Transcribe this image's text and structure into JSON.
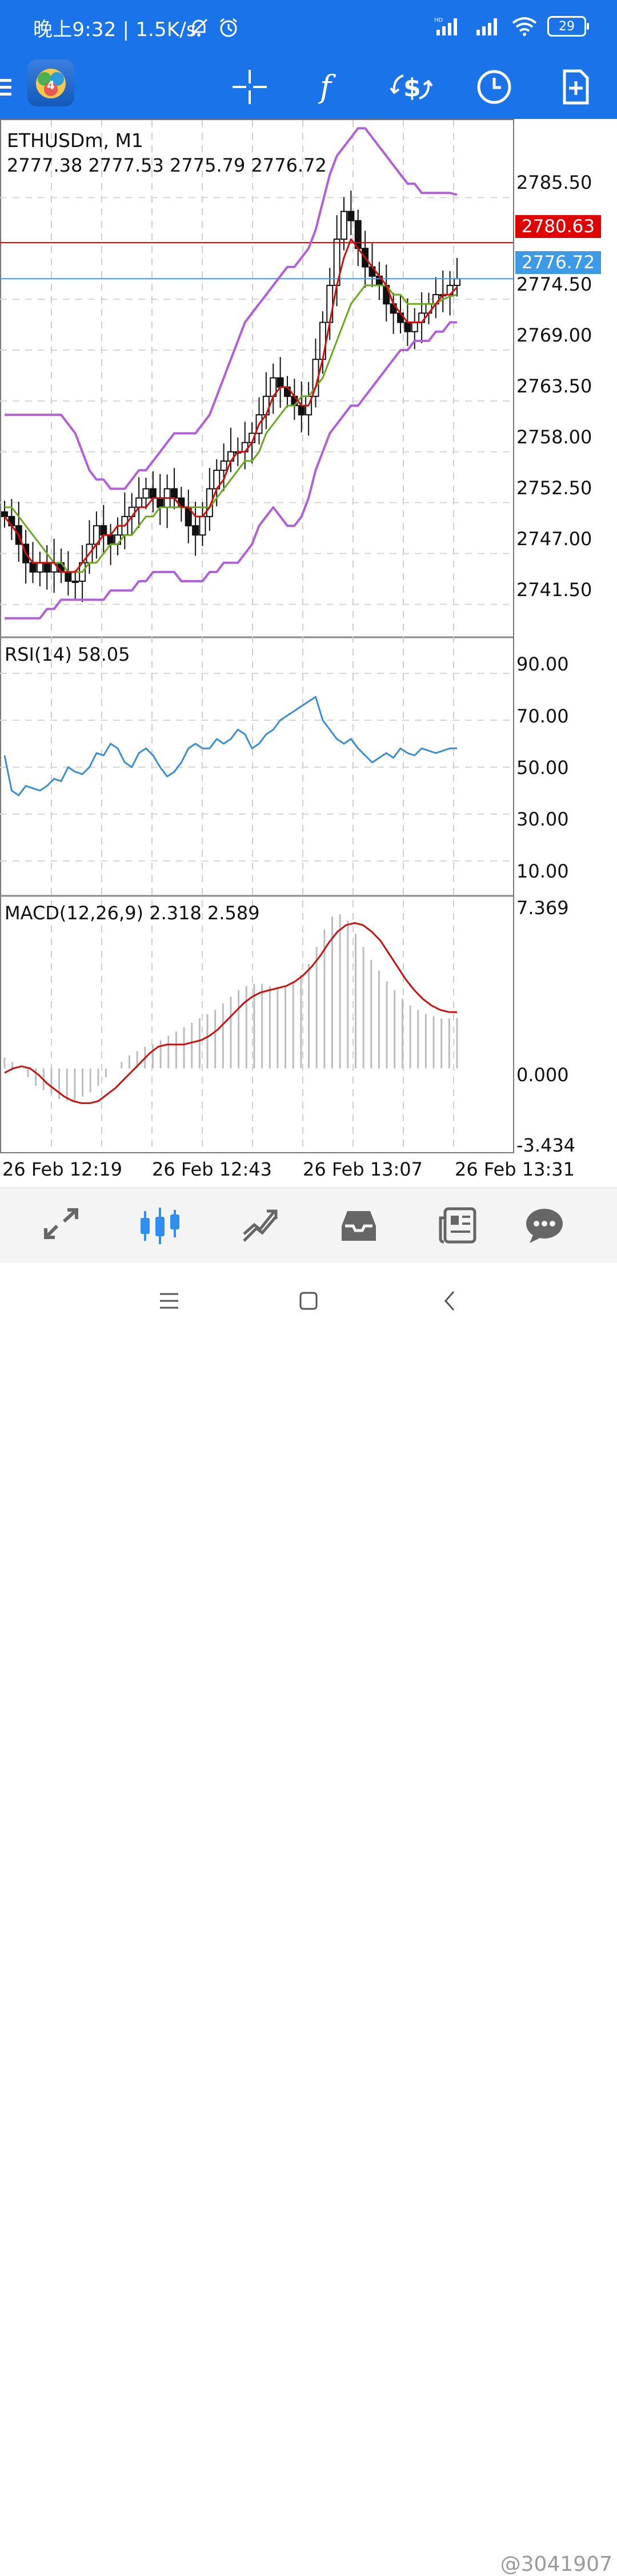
{
  "status_bar": {
    "left_text": "晚上9:32 | 1.5K/s",
    "battery": "29",
    "net_label": "HD"
  },
  "toolbar": {
    "icons": [
      "menu-icon",
      "app-logo-icon",
      "crosshair-icon",
      "indicators-icon",
      "trade-icon",
      "timeframe-icon",
      "new-order-icon"
    ]
  },
  "chart": {
    "symbol_timeframe": "ETHUSDm, M1",
    "ohlc": "2777.38 2777.53 2775.79 2776.72",
    "price_ticks": [
      "2785.50",
      "2774.50",
      "2769.00",
      "2763.50",
      "2758.00",
      "2752.50",
      "2747.00",
      "2741.50"
    ],
    "ask_line": "2780.63",
    "bid_line": "2776.72",
    "rsi_title": "RSI(14) 58.05",
    "rsi_ticks": [
      "90.00",
      "70.00",
      "50.00",
      "30.00",
      "10.00"
    ],
    "macd_title": "MACD(12,26,9) 2.318 2.589",
    "macd_ticks": [
      "7.369",
      "0.000",
      "-3.434"
    ],
    "time_labels": [
      "26 Feb 12:19",
      "26 Feb 12:43",
      "26 Feb 13:07",
      "26 Feb 13:31"
    ],
    "colors": {
      "bollinger": "#b060d8",
      "ma_fast": "#cc1010",
      "ma_slow": "#6aa820",
      "rsi": "#3b8fd0",
      "ask": "#e00000",
      "bid": "#3c9ae6"
    }
  },
  "chart_data": {
    "type": "candlestick",
    "symbol": "ETHUSDm",
    "timeframe": "M1",
    "price_range": [
      2738,
      2794
    ],
    "close": [
      2751,
      2750,
      2748,
      2746,
      2745,
      2746,
      2745,
      2746,
      2745,
      2744,
      2744,
      2746,
      2748,
      2750,
      2749,
      2748,
      2749,
      2751,
      2752,
      2753,
      2754,
      2753,
      2752,
      2754,
      2753,
      2752,
      2750,
      2749,
      2751,
      2754,
      2756,
      2757,
      2758,
      2758,
      2759,
      2760,
      2762,
      2764,
      2766,
      2765,
      2764,
      2763,
      2762,
      2764,
      2768,
      2772,
      2776,
      2781,
      2784,
      2783,
      2780,
      2778,
      2777,
      2776,
      2774,
      2773,
      2772,
      2771,
      2772,
      2773,
      2774,
      2775,
      2775,
      2776,
      2776.72
    ],
    "ma_fast": [
      2751,
      2750,
      2749,
      2747,
      2746,
      2746,
      2746,
      2746,
      2745,
      2745,
      2745,
      2746,
      2747,
      2748,
      2749,
      2749,
      2750,
      2750,
      2751,
      2752,
      2752,
      2753,
      2753,
      2753,
      2753,
      2752,
      2752,
      2751,
      2751,
      2752,
      2754,
      2755,
      2757,
      2758,
      2758,
      2759,
      2761,
      2762,
      2764,
      2765,
      2765,
      2764,
      2763,
      2763,
      2765,
      2768,
      2772,
      2776,
      2779,
      2781,
      2780,
      2779,
      2778,
      2777,
      2776,
      2774,
      2773,
      2772,
      2772,
      2772,
      2773,
      2774,
      2775,
      2775,
      2775.8
    ],
    "ma_slow": [
      2752,
      2752,
      2751,
      2750,
      2749,
      2748,
      2747,
      2746,
      2746,
      2745,
      2745,
      2745,
      2746,
      2746,
      2747,
      2748,
      2748,
      2749,
      2749,
      2750,
      2751,
      2751,
      2752,
      2752,
      2752,
      2752,
      2752,
      2752,
      2752,
      2752,
      2753,
      2754,
      2755,
      2756,
      2757,
      2757,
      2758,
      2760,
      2761,
      2762,
      2763,
      2763,
      2764,
      2764,
      2765,
      2766,
      2768,
      2770,
      2772,
      2774,
      2775,
      2776,
      2776,
      2776,
      2776,
      2775,
      2775,
      2774,
      2774,
      2774,
      2774,
      2774,
      2774.5,
      2774.8,
      2775
    ],
    "bb_upper": [
      2762,
      2762,
      2762,
      2762,
      2762,
      2762,
      2762,
      2762,
      2762,
      2761,
      2760,
      2758,
      2756,
      2755,
      2755,
      2754,
      2754,
      2754,
      2755,
      2756,
      2756,
      2757,
      2758,
      2759,
      2760,
      2760,
      2760,
      2760,
      2761,
      2762,
      2764,
      2766,
      2768,
      2770,
      2772,
      2773,
      2774,
      2775,
      2776,
      2777,
      2778,
      2778,
      2779,
      2780,
      2782,
      2785,
      2788,
      2790,
      2791,
      2792,
      2793,
      2793,
      2792,
      2791,
      2790,
      2789,
      2788,
      2787,
      2787,
      2786,
      2786,
      2786,
      2786,
      2786,
      2785.8
    ],
    "bb_lower": [
      2740,
      2740,
      2740,
      2740,
      2740,
      2740,
      2741,
      2741,
      2742,
      2742,
      2742,
      2742,
      2742,
      2742,
      2742,
      2743,
      2743,
      2743,
      2743,
      2744,
      2744,
      2745,
      2745,
      2745,
      2745,
      2744,
      2744,
      2744,
      2744,
      2745,
      2745,
      2746,
      2746,
      2746,
      2747,
      2748,
      2750,
      2751,
      2752,
      2751,
      2750,
      2750,
      2751,
      2753,
      2756,
      2758,
      2760,
      2761,
      2762,
      2763,
      2763,
      2764,
      2765,
      2766,
      2767,
      2768,
      2769,
      2769,
      2770,
      2770,
      2770,
      2771,
      2771,
      2772,
      2772
    ],
    "ask": 2780.63,
    "bid": 2776.72,
    "rsi": [
      55,
      40,
      38,
      42,
      41,
      40,
      42,
      45,
      44,
      50,
      48,
      47,
      50,
      56,
      55,
      60,
      58,
      52,
      50,
      56,
      58,
      55,
      50,
      46,
      48,
      52,
      58,
      60,
      58,
      58,
      62,
      60,
      62,
      66,
      64,
      58,
      60,
      64,
      66,
      70,
      72,
      74,
      76,
      78,
      80,
      70,
      66,
      62,
      60,
      62,
      58,
      55,
      52,
      54,
      56,
      54,
      58,
      56,
      55,
      58,
      57,
      56,
      57,
      58,
      58.05
    ],
    "rsi_range": [
      0,
      100
    ],
    "macd_hist": [
      0.5,
      0.3,
      0.0,
      -0.4,
      -0.8,
      -1.0,
      -1.2,
      -1.4,
      -1.5,
      -1.5,
      -1.3,
      -1.1,
      -0.8,
      -0.4,
      0.0,
      0.3,
      0.6,
      0.8,
      1.0,
      1.1,
      1.3,
      1.5,
      1.7,
      1.9,
      2.1,
      2.3,
      2.5,
      2.7,
      3.0,
      3.3,
      3.6,
      3.8,
      3.9,
      3.9,
      3.8,
      3.7,
      3.8,
      4.0,
      4.3,
      4.8,
      5.6,
      6.4,
      7.0,
      7.1,
      6.8,
      6.2,
      5.6,
      5.0,
      4.5,
      4.0,
      3.6,
      3.2,
      2.9,
      2.7,
      2.5,
      2.4,
      2.3,
      2.3,
      2.318
    ],
    "macd_signal": [
      -0.2,
      0.0,
      0.1,
      0.0,
      -0.3,
      -0.7,
      -1.0,
      -1.3,
      -1.5,
      -1.6,
      -1.6,
      -1.5,
      -1.2,
      -0.9,
      -0.5,
      -0.1,
      0.3,
      0.7,
      1.0,
      1.1,
      1.1,
      1.1,
      1.2,
      1.3,
      1.5,
      1.8,
      2.2,
      2.6,
      3.0,
      3.3,
      3.5,
      3.6,
      3.7,
      3.8,
      4.0,
      4.3,
      4.7,
      5.2,
      5.8,
      6.3,
      6.6,
      6.7,
      6.6,
      6.3,
      5.9,
      5.3,
      4.7,
      4.1,
      3.6,
      3.2,
      2.9,
      2.7,
      2.6,
      2.589
    ],
    "macd_range": [
      -3.434,
      7.369
    ]
  },
  "bottom_nav": {
    "items": [
      "quotes",
      "chart",
      "trade",
      "history",
      "news",
      "messages"
    ]
  },
  "watermark": "@3041907"
}
